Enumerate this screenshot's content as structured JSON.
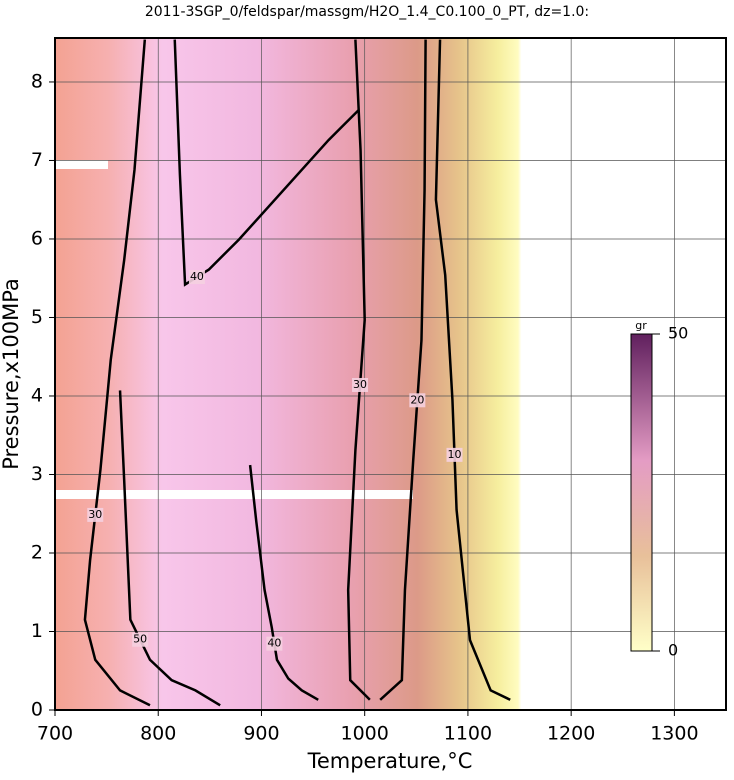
{
  "chart_data": {
    "type": "contour",
    "title": "2011-3SGP_0/feldspar/massgm/H2O_1.4_C0.100_0_PT, dz=1.0:",
    "x_label": "Temperature,°C",
    "y_label": "Pressure,x100MPa",
    "xlim": [
      700,
      1350
    ],
    "ylim": [
      0,
      8.56
    ],
    "xticks": [
      700,
      800,
      900,
      1000,
      1100,
      1200,
      1300
    ],
    "yticks": [
      0,
      1,
      2,
      3,
      4,
      5,
      6,
      7,
      8
    ],
    "grid": true,
    "contours": [
      {
        "level": 10,
        "x": [
          1073,
          1069,
          1078,
          1085,
          1089,
          1102,
          1122,
          1141
        ],
        "y": [
          8.54,
          6.5,
          5.54,
          3.95,
          2.55,
          0.89,
          0.25,
          0.13
        ]
      },
      {
        "level": 20,
        "x": [
          1059,
          1058,
          1055,
          1047,
          1039,
          1036,
          1015
        ],
        "y": [
          8.54,
          6.62,
          4.71,
          3.18,
          1.53,
          0.38,
          0.13
        ]
      },
      {
        "level": 30,
        "x": [
          991,
          996,
          1000,
          991,
          984,
          986,
          1005
        ],
        "y": [
          8.54,
          7.13,
          4.97,
          3.31,
          1.53,
          0.38,
          0.13
        ]
      },
      {
        "level": 40,
        "x": [
          889,
          895,
          903,
          910,
          915,
          926,
          939,
          955
        ],
        "y": [
          3.12,
          2.4,
          1.53,
          1.05,
          0.64,
          0.4,
          0.25,
          0.13
        ]
      },
      {
        "level": 50,
        "x": [
          763,
          767,
          773,
          792,
          813,
          836,
          860
        ],
        "y": [
          4.07,
          2.93,
          1.15,
          0.64,
          0.38,
          0.25,
          0.06
        ]
      },
      {
        "level": 30,
        "x": [
          787,
          777,
          767,
          754,
          744,
          734,
          729,
          739,
          763,
          792
        ],
        "y": [
          8.54,
          6.88,
          5.73,
          4.46,
          3.06,
          1.91,
          1.15,
          0.64,
          0.25,
          0.06
        ]
      },
      {
        "level": 40,
        "x": [
          816,
          821,
          826,
          849,
          878,
          965,
          994
        ],
        "y": [
          8.54,
          6.82,
          5.42,
          5.61,
          5.99,
          7.26,
          7.64
        ]
      }
    ],
    "colorbar": {
      "label": "gr",
      "lim": [
        0,
        50
      ],
      "ticks": [
        0,
        50
      ]
    }
  }
}
